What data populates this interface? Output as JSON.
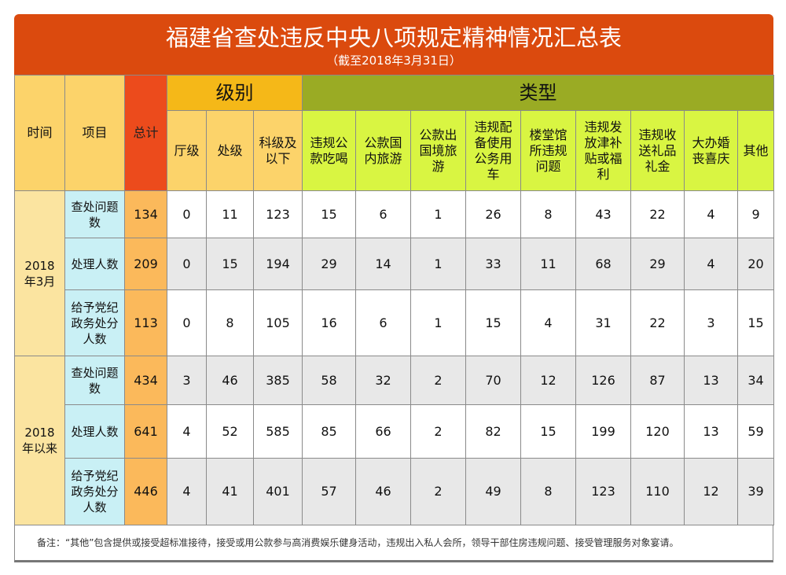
{
  "title": "福建省查处违反中央八项规定精神情况汇总表",
  "subtitle": "（截至2018年3月31日）",
  "headers": {
    "time": "时间",
    "item": "项目",
    "total": "总计",
    "level": "级别",
    "type": "类型",
    "levels": [
      "厅级",
      "处级",
      "科级及以下"
    ],
    "types": [
      "违规公款吃喝",
      "公款国内旅游",
      "公款出国境旅游",
      "违规配备使用公务用车",
      "楼堂馆所违规问题",
      "违规发放津补贴或福利",
      "违规收送礼品礼金",
      "大办婚丧喜庆",
      "其他"
    ]
  },
  "groups": [
    {
      "time": "2018年3月",
      "rows": [
        {
          "item": "查处问题数",
          "values": [
            134,
            0,
            11,
            123,
            15,
            6,
            1,
            26,
            8,
            43,
            22,
            4,
            9
          ]
        },
        {
          "item": "处理人数",
          "values": [
            209,
            0,
            15,
            194,
            29,
            14,
            1,
            33,
            11,
            68,
            29,
            4,
            20
          ]
        },
        {
          "item": "给予党纪政务处分人数",
          "values": [
            113,
            0,
            8,
            105,
            16,
            6,
            1,
            15,
            4,
            31,
            22,
            3,
            15
          ]
        }
      ]
    },
    {
      "time": "2018年以来",
      "rows": [
        {
          "item": "查处问题数",
          "values": [
            434,
            3,
            46,
            385,
            58,
            32,
            2,
            70,
            12,
            126,
            87,
            13,
            34
          ]
        },
        {
          "item": "处理人数",
          "values": [
            641,
            4,
            52,
            585,
            85,
            66,
            2,
            82,
            15,
            199,
            120,
            13,
            59
          ]
        },
        {
          "item": "给予党纪政务处分人数",
          "values": [
            446,
            4,
            41,
            401,
            57,
            46,
            2,
            49,
            8,
            123,
            110,
            12,
            39
          ]
        }
      ]
    }
  ],
  "note": "备注：“其他”包含提供或接受超标准接待，接受或用公款参与高消费娱乐健身活动，违规出入私人会所，领导干部住房违规问题、接受管理服务对象宴请。",
  "colors": {
    "title": "#db4a0e",
    "level": "#f5b818",
    "type": "#9aab24",
    "total": "#ec4b1c"
  }
}
